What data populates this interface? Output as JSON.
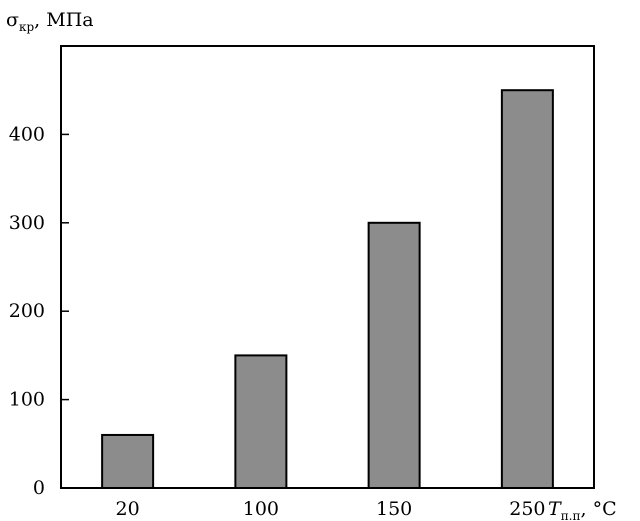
{
  "chart_data": {
    "type": "bar",
    "categories": [
      "20",
      "100",
      "150",
      "250"
    ],
    "values": [
      60,
      150,
      300,
      450
    ],
    "title": "",
    "ylim": [
      0,
      500
    ],
    "yticks": [
      0,
      100,
      200,
      300,
      400
    ],
    "ylabel": {
      "symbol": "σ",
      "sub": "кр",
      "unit": ", МПа"
    },
    "xlabel": {
      "symbol": "T",
      "sub": "п.п",
      "unit": ", °C"
    },
    "grid": false,
    "colors": {
      "bar": "#8c8c8c",
      "frame": "#000000"
    }
  }
}
